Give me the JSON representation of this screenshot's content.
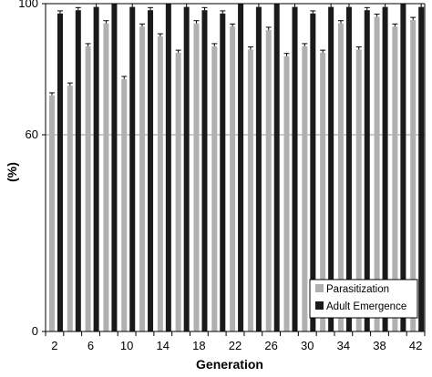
{
  "chart_data": {
    "type": "bar",
    "title": "",
    "xlabel": "Generation",
    "ylabel": "(%)",
    "ylim": [
      0,
      100
    ],
    "yticks": [
      0,
      60,
      100
    ],
    "reference_line": 60,
    "categories": [
      "2",
      "4",
      "6",
      "8",
      "10",
      "12",
      "14",
      "16",
      "18",
      "20",
      "22",
      "24",
      "26",
      "28",
      "30",
      "32",
      "34",
      "36",
      "38",
      "40",
      "42"
    ],
    "x_tick_labels": [
      "2",
      "6",
      "10",
      "14",
      "18",
      "22",
      "26",
      "30",
      "34",
      "38",
      "42"
    ],
    "series": [
      {
        "name": "Parasitization",
        "color": "#b0b0b0",
        "values": [
          72,
          75,
          87,
          94,
          77,
          93,
          90,
          85,
          94,
          87,
          93,
          86,
          92,
          84,
          87,
          85,
          94,
          86,
          96,
          93,
          95
        ]
      },
      {
        "name": "Adult Emergence",
        "color": "#1a1a1a",
        "values": [
          97,
          98,
          99,
          100,
          99,
          98,
          100,
          99,
          98,
          97,
          100,
          99,
          100,
          99,
          97,
          99,
          99,
          98,
          99,
          100,
          99
        ]
      }
    ],
    "legend": {
      "placement": "bottom-right"
    },
    "grid": false
  }
}
